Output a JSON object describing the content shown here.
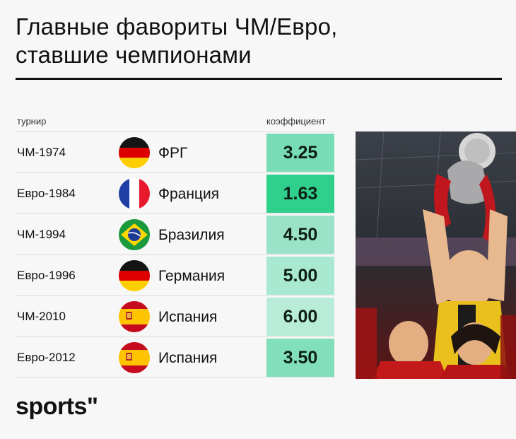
{
  "title": {
    "line1": "Главные фавориты ЧМ/Евро,",
    "line2": "ставшие чемпионами"
  },
  "headers": {
    "tournament": "турнир",
    "coefficient": "коэффициент"
  },
  "rows": [
    {
      "tournament": "ЧМ-1974",
      "team": "ФРГ",
      "coefficient": "3.25",
      "flag": "germany-flag",
      "color": "#78dcb6"
    },
    {
      "tournament": "Евро-1984",
      "team": "Франция",
      "coefficient": "1.63",
      "flag": "france-flag",
      "color": "#2fcf8c"
    },
    {
      "tournament": "ЧМ-1994",
      "team": "Бразилия",
      "coefficient": "4.50",
      "flag": "brazil-flag",
      "color": "#9ae3c8"
    },
    {
      "tournament": "Евро-1996",
      "team": "Германия",
      "coefficient": "5.00",
      "flag": "germany-flag",
      "color": "#a9e8d1"
    },
    {
      "tournament": "ЧМ-2010",
      "team": "Испания",
      "coefficient": "6.00",
      "flag": "spain-flag",
      "color": "#b8ecd9"
    },
    {
      "tournament": "Евро-2012",
      "team": "Испания",
      "coefficient": "3.50",
      "flag": "spain-flag",
      "color": "#82dfbb"
    }
  ],
  "logo": {
    "text": "sports\""
  },
  "colors": {
    "background": "#f7f7f7",
    "text": "#111111"
  }
}
